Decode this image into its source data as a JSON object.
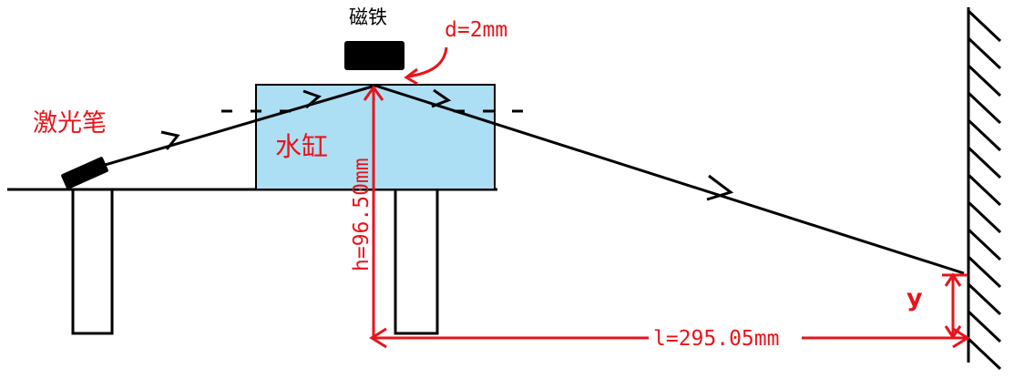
{
  "labels": {
    "laser_pen": "激光笔",
    "magnet": "磁铁",
    "thickness": "d=2mm",
    "water_tank": "水缸",
    "height": "h=96.50mm",
    "distance": "l=295.05mm",
    "offset": "y"
  },
  "colors": {
    "dimension_red": "#e8141b",
    "water_blue": "#acdff3",
    "line_black": "#000000"
  }
}
